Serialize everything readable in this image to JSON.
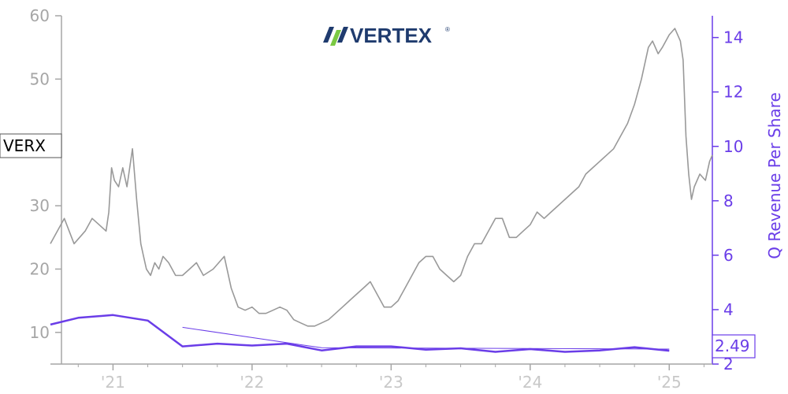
{
  "logo": {
    "text": "VERTEX",
    "mark_colors": [
      "#1f3b6e",
      "#7ac943"
    ],
    "text_color": "#1f3b6e"
  },
  "chart_data": {
    "type": "line",
    "ticker_label": "VERX",
    "y_left": {
      "ticks": [
        10,
        20,
        30,
        40,
        50,
        60
      ],
      "ylim": [
        5,
        60
      ],
      "color": "#a6a6a6"
    },
    "y_right": {
      "label": "Q Revenue Per Share",
      "ticks": [
        2,
        4,
        6,
        8,
        10,
        12,
        14
      ],
      "ylim": [
        2,
        14.8
      ],
      "color": "#6a3de8"
    },
    "x_ticks": [
      {
        "label": "'21",
        "x": 2021.0
      },
      {
        "label": "'22",
        "x": 2022.0
      },
      {
        "label": "'23",
        "x": 2023.0
      },
      {
        "label": "'24",
        "x": 2024.0
      },
      {
        "label": "'25",
        "x": 2025.0
      }
    ],
    "xlim": [
      2020.55,
      2025.31
    ],
    "grid": false,
    "series": [
      {
        "kind": "price",
        "axis": "left",
        "color": "#999999",
        "x": [
          2020.55,
          2020.6,
          2020.65,
          2020.72,
          2020.8,
          2020.85,
          2020.9,
          2020.95,
          2020.97,
          2020.99,
          2021.01,
          2021.04,
          2021.07,
          2021.1,
          2021.14,
          2021.17,
          2021.2,
          2021.22,
          2021.24,
          2021.27,
          2021.3,
          2021.33,
          2021.36,
          2021.4,
          2021.45,
          2021.5,
          2021.55,
          2021.6,
          2021.65,
          2021.72,
          2021.8,
          2021.85,
          2021.9,
          2021.95,
          2022.0,
          2022.05,
          2022.1,
          2022.15,
          2022.2,
          2022.25,
          2022.3,
          2022.35,
          2022.4,
          2022.45,
          2022.5,
          2022.55,
          2022.6,
          2022.65,
          2022.7,
          2022.75,
          2022.8,
          2022.85,
          2022.9,
          2022.95,
          2023.0,
          2023.05,
          2023.1,
          2023.15,
          2023.2,
          2023.25,
          2023.3,
          2023.35,
          2023.4,
          2023.45,
          2023.5,
          2023.55,
          2023.6,
          2023.65,
          2023.7,
          2023.75,
          2023.8,
          2023.85,
          2023.9,
          2023.95,
          2024.0,
          2024.05,
          2024.1,
          2024.15,
          2024.2,
          2024.25,
          2024.3,
          2024.35,
          2024.4,
          2024.45,
          2024.5,
          2024.55,
          2024.6,
          2024.65,
          2024.7,
          2024.75,
          2024.8,
          2024.85,
          2024.88,
          2024.92,
          2024.95,
          2025.0,
          2025.04,
          2025.08,
          2025.1,
          2025.12,
          2025.14,
          2025.16,
          2025.18,
          2025.22,
          2025.26,
          2025.29,
          2025.31
        ],
        "y": [
          24,
          26,
          28,
          24,
          26,
          28,
          27,
          26,
          29,
          36,
          34,
          33,
          36,
          33,
          39,
          31,
          24,
          22,
          20,
          19,
          21,
          20,
          22,
          21,
          19,
          19,
          20,
          21,
          19,
          20,
          22,
          17,
          14,
          13.5,
          14,
          13,
          13,
          13.5,
          14,
          13.5,
          12,
          11.5,
          11,
          11,
          11.5,
          12,
          13,
          14,
          15,
          16,
          17,
          18,
          16,
          14,
          14,
          15,
          17,
          19,
          21,
          22,
          22,
          20,
          19,
          18,
          19,
          22,
          24,
          24,
          26,
          28,
          28,
          25,
          25,
          26,
          27,
          29,
          28,
          29,
          30,
          31,
          32,
          33,
          35,
          36,
          37,
          38,
          39,
          41,
          43,
          46,
          50,
          55,
          56,
          54,
          55,
          57,
          58,
          56,
          53,
          41,
          35,
          31,
          33,
          35,
          34,
          37,
          38
        ]
      },
      {
        "kind": "revenue",
        "axis": "right",
        "color": "#6a3de8",
        "x": [
          2020.55,
          2020.75,
          2021.0,
          2021.25,
          2021.5,
          2021.75,
          2022.0,
          2022.25,
          2022.5,
          2022.75,
          2023.0,
          2023.25,
          2023.5,
          2023.75,
          2024.0,
          2024.25,
          2024.5,
          2024.75,
          2025.0
        ],
        "y": [
          3.45,
          3.7,
          3.8,
          3.6,
          2.65,
          2.75,
          2.68,
          2.75,
          2.5,
          2.65,
          2.65,
          2.53,
          2.58,
          2.45,
          2.55,
          2.45,
          2.5,
          2.62,
          2.49
        ]
      },
      {
        "kind": "trend",
        "axis": "right",
        "color": "#6a3de8",
        "x": [
          2021.5,
          2022.5,
          2025.0
        ],
        "y": [
          3.35,
          2.6,
          2.55
        ]
      }
    ],
    "last_value_label": "2.49"
  }
}
